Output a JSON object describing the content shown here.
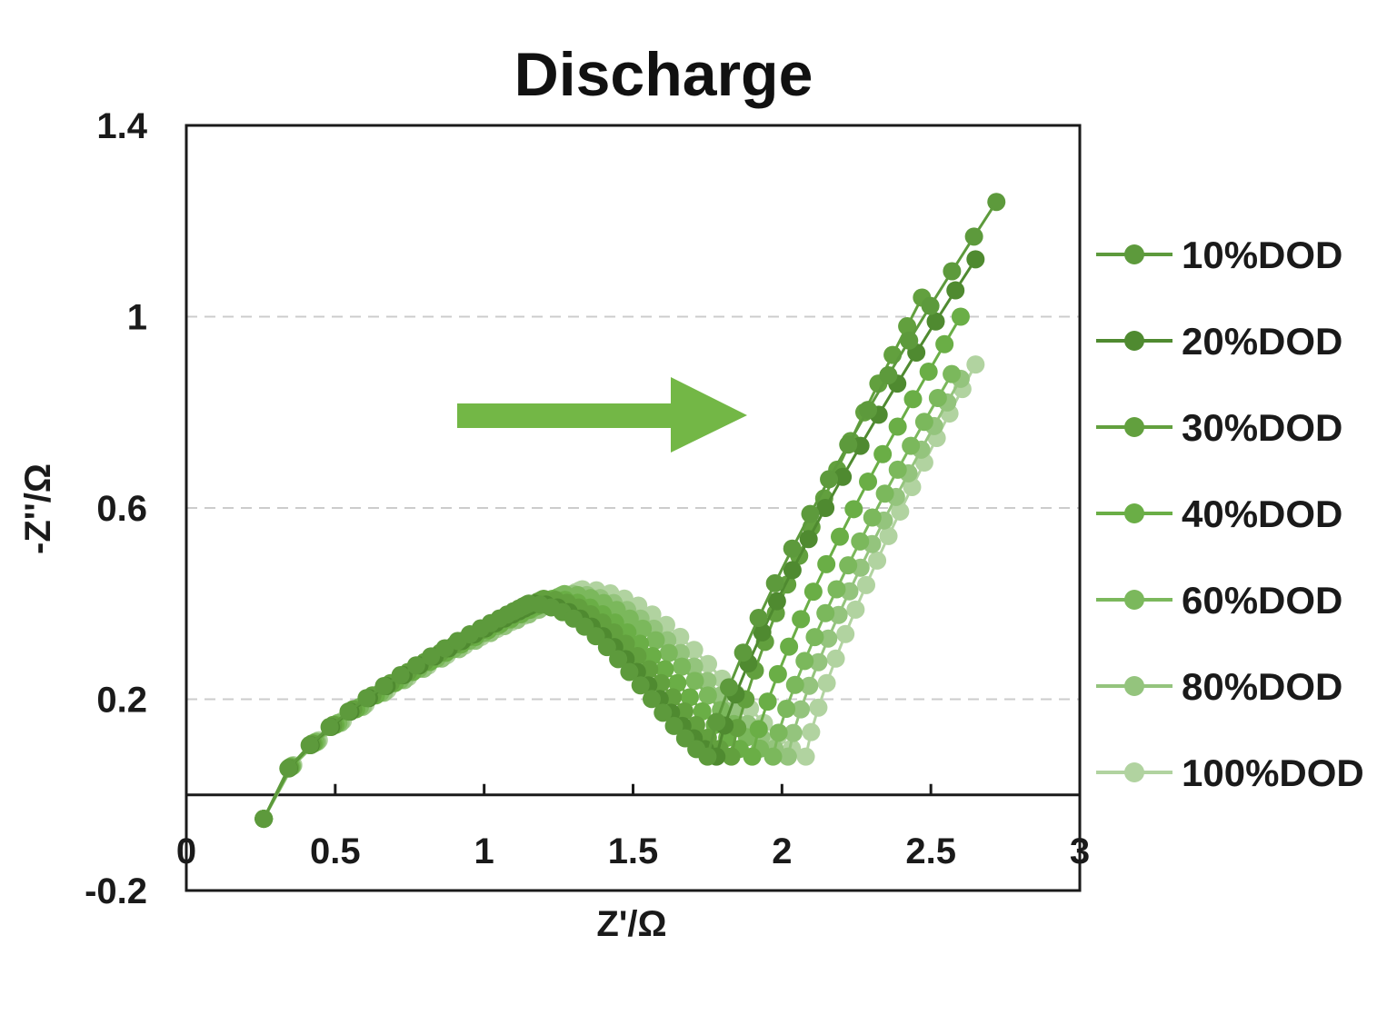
{
  "chart_data": {
    "type": "scatter",
    "title": "Discharge",
    "xlabel": "Z'/Ω",
    "ylabel": "-Z''/Ω",
    "xlim": [
      0,
      3
    ],
    "ylim": [
      -0.2,
      1.4
    ],
    "x_ticks": [
      "0",
      "0.5",
      "1",
      "1.5",
      "2",
      "2.5",
      "3"
    ],
    "y_ticks": [
      "-0.2",
      "0.2",
      "0.6",
      "1",
      "1.4"
    ],
    "grid": "horizontal dashed at 0.2, 0.6, 1",
    "legend_position": "right",
    "annotation": "green arrow pointing right",
    "series": [
      {
        "name": "10%DOD",
        "color": "#5d9a3c",
        "x_min": 0.26,
        "semicircle_peak_x": 1.15,
        "semicircle_peak_y": 0.4,
        "valley_x": 1.75,
        "valley_y": 0.08,
        "tail_end_x": 2.72,
        "tail_end_y": 1.24
      },
      {
        "name": "20%DOD",
        "color": "#4f8a30",
        "x_min": 0.26,
        "semicircle_peak_x": 1.17,
        "semicircle_peak_y": 0.4,
        "valley_x": 1.78,
        "valley_y": 0.08,
        "tail_end_x": 2.65,
        "tail_end_y": 1.12
      },
      {
        "name": "30%DOD",
        "color": "#62a03e",
        "x_min": 0.26,
        "semicircle_peak_x": 1.2,
        "semicircle_peak_y": 0.41,
        "valley_x": 1.83,
        "valley_y": 0.08,
        "tail_end_x": 2.47,
        "tail_end_y": 1.04
      },
      {
        "name": "40%DOD",
        "color": "#6aae46",
        "x_min": 0.26,
        "semicircle_peak_x": 1.23,
        "semicircle_peak_y": 0.41,
        "valley_x": 1.9,
        "valley_y": 0.08,
        "tail_end_x": 2.6,
        "tail_end_y": 1.0
      },
      {
        "name": "60%DOD",
        "color": "#7bb85c",
        "x_min": 0.26,
        "semicircle_peak_x": 1.27,
        "semicircle_peak_y": 0.42,
        "valley_x": 1.97,
        "valley_y": 0.08,
        "tail_end_x": 2.57,
        "tail_end_y": 0.88
      },
      {
        "name": "80%DOD",
        "color": "#94c47d",
        "x_min": 0.26,
        "semicircle_peak_x": 1.3,
        "semicircle_peak_y": 0.42,
        "valley_x": 2.02,
        "valley_y": 0.08,
        "tail_end_x": 2.6,
        "tail_end_y": 0.87
      },
      {
        "name": "100%DOD",
        "color": "#b1d3a0",
        "x_min": 0.26,
        "semicircle_peak_x": 1.33,
        "semicircle_peak_y": 0.43,
        "valley_x": 2.08,
        "valley_y": 0.08,
        "tail_end_x": 2.65,
        "tail_end_y": 0.9
      }
    ]
  }
}
